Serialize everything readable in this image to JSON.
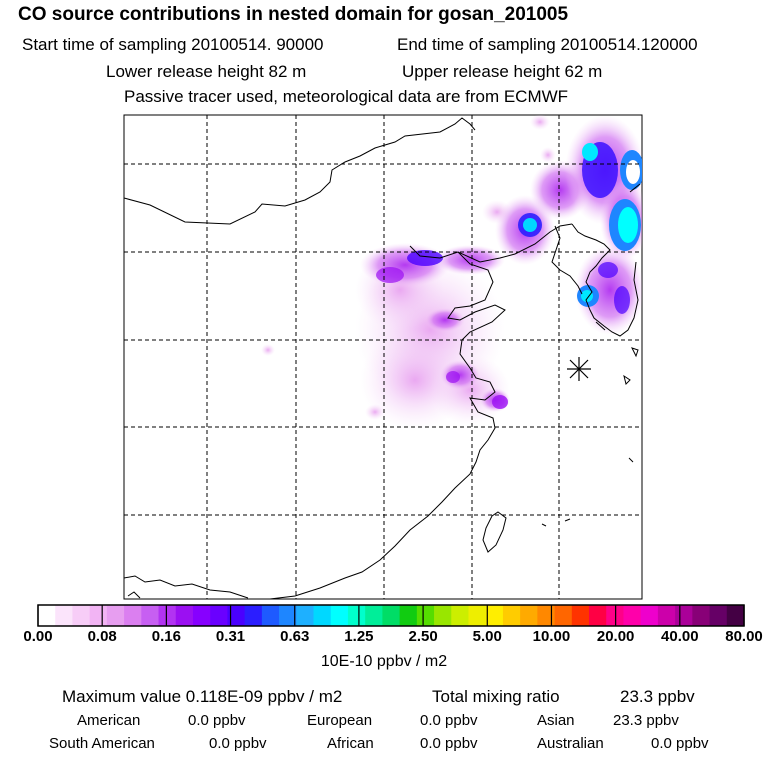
{
  "header": {
    "title": "CO  source contributions in nested domain for gosan_201005",
    "start_label": "Start time of sampling 20100514. 90000",
    "end_label": "End time of sampling 20100514.120000",
    "lower_label": "Lower release height   82 m",
    "upper_label": "Upper release height   62 m",
    "note": "Passive tracer used, meteorological data are from ECMWF"
  },
  "chart_data": {
    "type": "heatmap",
    "title": "CO  source contributions in nested domain for gosan_201005",
    "colorbar_labels": [
      "0.00",
      "0.08",
      "0.16",
      "0.31",
      "0.63",
      "1.25",
      "2.50",
      "5.00",
      "10.00",
      "20.00",
      "40.00",
      "80.00"
    ],
    "colorbar_colors": [
      "#ffffff",
      "#fbe4fb",
      "#f7cdf7",
      "#f2b4f4",
      "#e79ef0",
      "#db7ff0",
      "#c75ff2",
      "#b233f2",
      "#9b10f2",
      "#8700ff",
      "#6a00ff",
      "#4a00ff",
      "#2b1eff",
      "#1e5aff",
      "#1e86ff",
      "#1eb0ff",
      "#00d8ff",
      "#00ffff",
      "#00ffcc",
      "#00ee99",
      "#00dd66",
      "#11cc11",
      "#55dd00",
      "#99e600",
      "#ccee00",
      "#eeee00",
      "#ffee00",
      "#ffcc00",
      "#ffaa00",
      "#ff8800",
      "#ff6600",
      "#ff3300",
      "#ff0044",
      "#ff0088",
      "#ff00aa",
      "#ee00cc",
      "#cc00aa",
      "#aa0099",
      "#880077",
      "#660066",
      "#440044"
    ],
    "units": "10E-10 ppbv / m2",
    "receptor_marker": "gosan receptor (asterisk)"
  },
  "stats": {
    "max_label": "Maximum value  0.118E-09 ppbv / m2",
    "total_label": "Total mixing ratio",
    "total_value": "23.3 ppbv"
  },
  "regions": [
    {
      "name": "American",
      "value": "0.0 ppbv"
    },
    {
      "name": "European",
      "value": "0.0 ppbv"
    },
    {
      "name": "Asian",
      "value": "23.3 ppbv"
    },
    {
      "name": "South American",
      "value": "0.0 ppbv"
    },
    {
      "name": "African",
      "value": "0.0 ppbv"
    },
    {
      "name": "Australian",
      "value": "0.0 ppbv"
    }
  ]
}
